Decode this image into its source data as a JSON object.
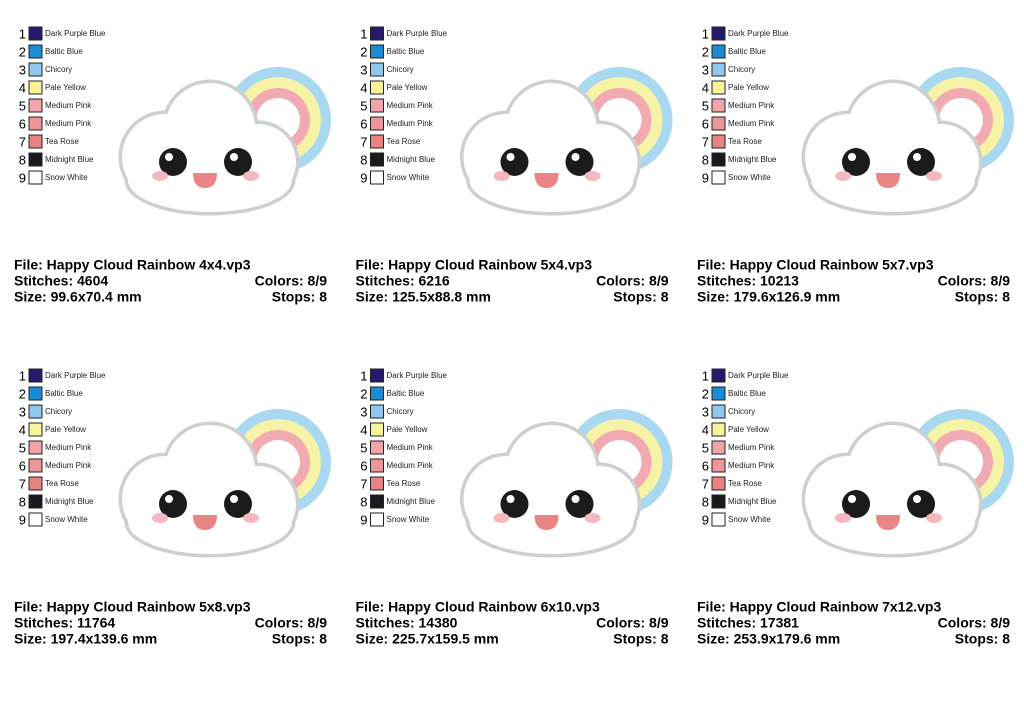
{
  "palette": [
    {
      "number": 1,
      "name": "Dark Purple Blue",
      "color": "#24196b"
    },
    {
      "number": 2,
      "name": "Baltic Blue",
      "color": "#1b8bd6"
    },
    {
      "number": 3,
      "name": "Chicory",
      "color": "#8fc8ef"
    },
    {
      "number": 4,
      "name": "Pale Yellow",
      "color": "#f6f39a"
    },
    {
      "number": 5,
      "name": "Medium Pink",
      "color": "#f2a4ab"
    },
    {
      "number": 6,
      "name": "Medium Pink",
      "color": "#ee949c"
    },
    {
      "number": 7,
      "name": "Tea Rose",
      "color": "#e88382"
    },
    {
      "number": 8,
      "name": "Midnight Blue",
      "color": "#1a1a1e"
    },
    {
      "number": 9,
      "name": "Snow White",
      "color": "#ffffff"
    }
  ],
  "designs": [
    {
      "file": "File: Happy Cloud Rainbow 4x4.vp3",
      "stitches": "Stitches: 4604",
      "colors": "Colors: 8/9",
      "size": "Size: 99.6x70.4 mm",
      "stops": "Stops: 8"
    },
    {
      "file": "File: Happy Cloud Rainbow 5x4.vp3",
      "stitches": "Stitches: 6216",
      "colors": "Colors: 8/9",
      "size": "Size: 125.5x88.8 mm",
      "stops": "Stops: 8"
    },
    {
      "file": "File: Happy Cloud Rainbow 5x7.vp3",
      "stitches": "Stitches: 10213",
      "colors": "Colors: 8/9",
      "size": "Size: 179.6x126.9 mm",
      "stops": "Stops: 8"
    },
    {
      "file": "File: Happy Cloud Rainbow 5x8.vp3",
      "stitches": "Stitches: 11764",
      "colors": "Colors: 8/9",
      "size": "Size: 197.4x139.6 mm",
      "stops": "Stops: 8"
    },
    {
      "file": "File: Happy Cloud Rainbow 6x10.vp3",
      "stitches": "Stitches: 14380",
      "colors": "Colors: 8/9",
      "size": "Size: 225.7x159.5 mm",
      "stops": "Stops: 8"
    },
    {
      "file": "File: Happy Cloud Rainbow 7x12.vp3",
      "stitches": "Stitches: 17381",
      "colors": "Colors: 8/9",
      "size": "Size: 253.9x179.6 mm",
      "stops": "Stops: 8"
    }
  ]
}
